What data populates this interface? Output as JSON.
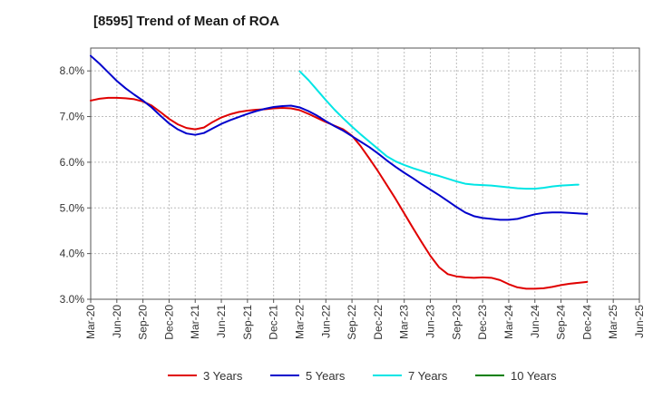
{
  "chart_data": {
    "type": "line",
    "title": "[8595]  Trend of Mean of ROA",
    "xlabel": "",
    "ylabel": "",
    "ylim": [
      3.0,
      8.5
    ],
    "y_ticks": [
      3.0,
      4.0,
      5.0,
      6.0,
      7.0,
      8.0
    ],
    "y_tick_labels": [
      "3.0%",
      "4.0%",
      "5.0%",
      "6.0%",
      "7.0%",
      "8.0%"
    ],
    "grid": true,
    "legend_position": "bottom",
    "x_tick_labels": [
      "Mar-20",
      "Jun-20",
      "Sep-20",
      "Dec-20",
      "Mar-21",
      "Jun-21",
      "Sep-21",
      "Dec-21",
      "Mar-22",
      "Jun-22",
      "Sep-22",
      "Dec-22",
      "Mar-23",
      "Jun-23",
      "Sep-23",
      "Dec-23",
      "Mar-24",
      "Jun-24",
      "Sep-24",
      "Dec-24",
      "Mar-25",
      "Jun-25"
    ],
    "x_count": 64,
    "series": [
      {
        "name": "3 Years",
        "color": "#e00000",
        "start_index": 0,
        "values": [
          7.35,
          7.39,
          7.41,
          7.41,
          7.4,
          7.38,
          7.33,
          7.24,
          7.1,
          6.95,
          6.83,
          6.75,
          6.72,
          6.76,
          6.88,
          6.98,
          7.05,
          7.1,
          7.13,
          7.15,
          7.16,
          7.18,
          7.19,
          7.18,
          7.14,
          7.06,
          6.97,
          6.88,
          6.8,
          6.72,
          6.58,
          6.35,
          6.08,
          5.8,
          5.5,
          5.2,
          4.88,
          4.56,
          4.25,
          3.95,
          3.7,
          3.55,
          3.5,
          3.48,
          3.47,
          3.48,
          3.47,
          3.42,
          3.33,
          3.26,
          3.23,
          3.23,
          3.24,
          3.27,
          3.31,
          3.34,
          3.36,
          3.38
        ]
      },
      {
        "name": "5 Years",
        "color": "#0000cc",
        "start_index": 0,
        "values": [
          8.33,
          8.16,
          7.97,
          7.78,
          7.62,
          7.48,
          7.35,
          7.2,
          7.02,
          6.85,
          6.72,
          6.63,
          6.6,
          6.64,
          6.74,
          6.84,
          6.92,
          6.99,
          7.06,
          7.12,
          7.17,
          7.21,
          7.23,
          7.24,
          7.2,
          7.12,
          7.02,
          6.9,
          6.79,
          6.69,
          6.57,
          6.45,
          6.33,
          6.19,
          6.04,
          5.9,
          5.77,
          5.65,
          5.52,
          5.4,
          5.28,
          5.15,
          5.02,
          4.9,
          4.82,
          4.78,
          4.76,
          4.74,
          4.74,
          4.76,
          4.81,
          4.86,
          4.89,
          4.9,
          4.9,
          4.89,
          4.88,
          4.87
        ]
      },
      {
        "name": "7 Years",
        "color": "#00e5e5",
        "start_index": 24,
        "values": [
          7.99,
          7.8,
          7.58,
          7.36,
          7.15,
          6.96,
          6.78,
          6.61,
          6.45,
          6.29,
          6.13,
          6.02,
          5.94,
          5.87,
          5.81,
          5.75,
          5.7,
          5.64,
          5.58,
          5.53,
          5.51,
          5.5,
          5.49,
          5.47,
          5.45,
          5.43,
          5.42,
          5.42,
          5.44,
          5.47,
          5.49,
          5.5,
          5.51
        ]
      },
      {
        "name": "10 Years",
        "color": "#007f00",
        "start_index": 0,
        "values": []
      }
    ]
  }
}
